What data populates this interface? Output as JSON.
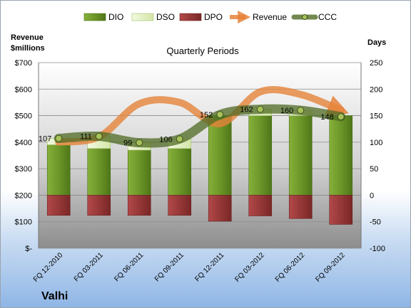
{
  "company": "Valhi",
  "chart_data": {
    "type": "bar",
    "title": "Quarterly Periods",
    "ylabel_left": "Revenue $millions",
    "ylabel_right": "Days",
    "categories": [
      "FQ 12-2010",
      "FQ 03-2011",
      "FQ 06-2011",
      "FQ 09-2011",
      "FQ 12-2011",
      "FQ 03-2012",
      "FQ 06-2012",
      "FQ 09-2012"
    ],
    "left_axis": {
      "min": 0,
      "max": 700,
      "step": 100,
      "tick_labels": [
        "$-",
        "$100",
        "$200",
        "$300",
        "$400",
        "$500",
        "$600",
        "$700"
      ]
    },
    "right_axis": {
      "min": -100,
      "max": 250,
      "step": 50,
      "tick_labels": [
        "-100",
        "-50",
        "0",
        "50",
        "100",
        "150",
        "200",
        "250"
      ]
    },
    "grid": true,
    "legend_position": "top",
    "series": [
      {
        "name": "DIO",
        "axis": "right",
        "color": "#6f9a2a",
        "values": [
          95,
          88,
          85,
          88,
          150,
          150,
          150,
          150
        ]
      },
      {
        "name": "DSO",
        "axis": "right",
        "color": "#e4f0c6",
        "values": [
          12,
          23,
          14,
          18,
          0,
          12,
          10,
          0
        ]
      },
      {
        "name": "DPO",
        "axis": "right",
        "color": "#9c3a3a",
        "values": [
          -38,
          -38,
          -38,
          -38,
          -49,
          -39,
          -44,
          -55
        ]
      },
      {
        "name": "Revenue",
        "axis": "left",
        "color": "#e5833a",
        "values": [
          400,
          420,
          545,
          550,
          470,
          590,
          580,
          520
        ]
      },
      {
        "name": "CCC",
        "axis": "right",
        "color": "#4f6a23",
        "values": [
          107,
          111,
          99,
          106,
          152,
          162,
          160,
          148
        ]
      }
    ],
    "ccc_labels": [
      "107",
      "111",
      "99",
      "106",
      "152",
      "162",
      "160",
      "148"
    ]
  }
}
